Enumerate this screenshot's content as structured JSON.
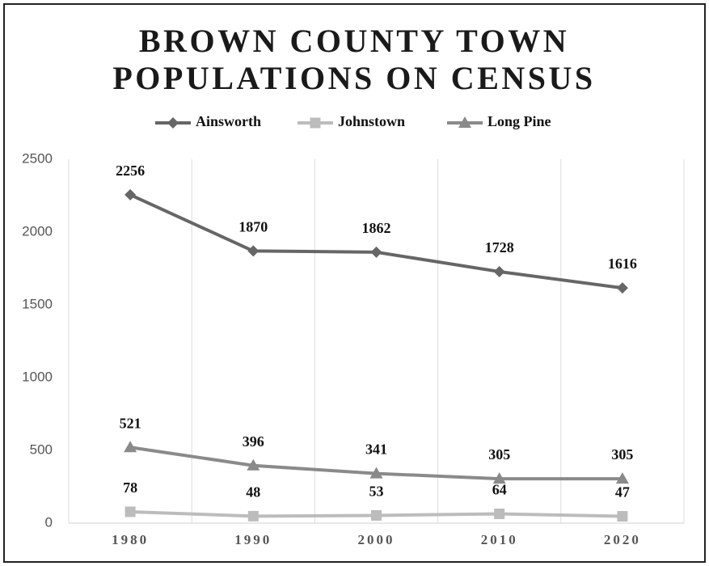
{
  "chart_data": {
    "type": "line",
    "title": "BROWN COUNTY TOWN POPULATIONS ON CENSUS",
    "categories": [
      "1980",
      "1990",
      "2000",
      "2010",
      "2020"
    ],
    "series": [
      {
        "name": "Ainsworth",
        "color": "#666666",
        "marker": "diamond",
        "values": [
          2256,
          1870,
          1862,
          1728,
          1616
        ]
      },
      {
        "name": "Johnstown",
        "color": "#bcbcbc",
        "marker": "square",
        "values": [
          78,
          48,
          53,
          64,
          47
        ]
      },
      {
        "name": "Long Pine",
        "color": "#8a8a8a",
        "marker": "triangle",
        "values": [
          521,
          396,
          341,
          305,
          305
        ]
      }
    ],
    "ylim": [
      0,
      2500
    ],
    "yticks": [
      0,
      500,
      1000,
      1500,
      2000,
      2500
    ],
    "grid": true,
    "legend": "top",
    "data_labels": true
  }
}
